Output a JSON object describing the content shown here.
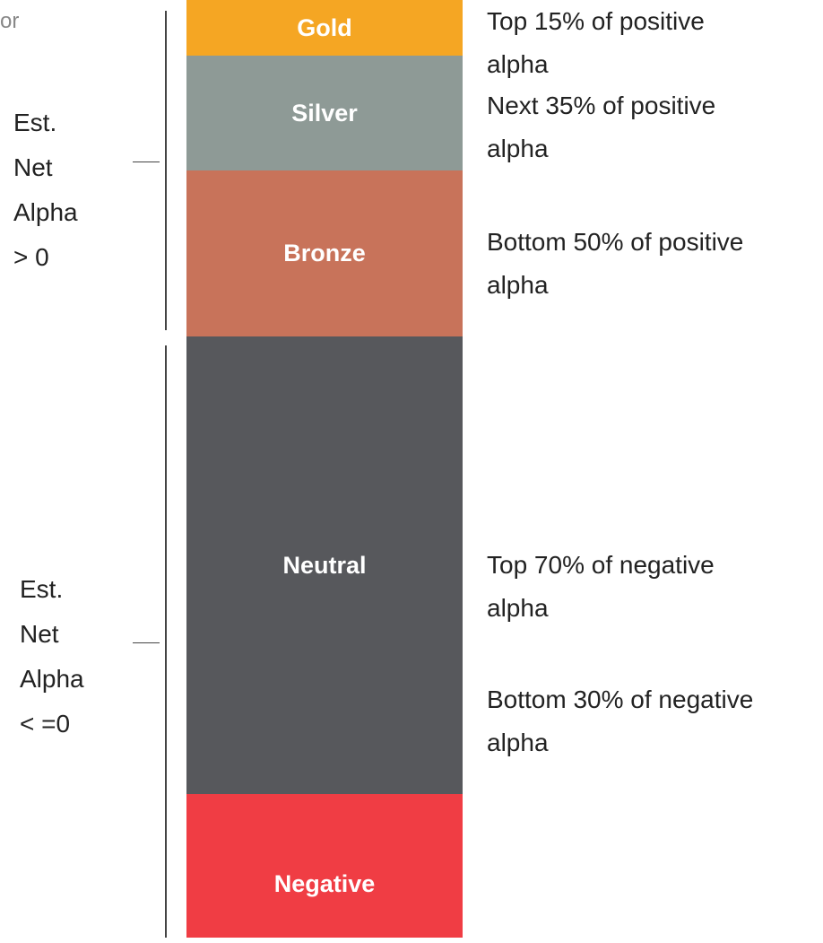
{
  "fragment": "or",
  "tiers": [
    {
      "label": "Gold",
      "color": "#f5a623",
      "description": [
        "Top 15% of positive",
        "alpha"
      ]
    },
    {
      "label": "Silver",
      "color": "#8e9a96",
      "description": [
        "Next 35% of positive",
        "alpha"
      ]
    },
    {
      "label": "Bronze",
      "color": "#c8735a",
      "description": [
        "Bottom 50% of positive",
        "alpha"
      ]
    },
    {
      "label": "Neutral",
      "color": "#57585c",
      "description": [
        "Top 70% of negative",
        "alpha"
      ]
    },
    {
      "label": "Negative",
      "color": "#f03d44",
      "description": [
        "Bottom 30% of negative",
        "alpha"
      ]
    }
  ],
  "groups": [
    {
      "lines": [
        "Est.",
        "Net",
        "Alpha",
        "> 0"
      ]
    },
    {
      "lines": [
        "Est.",
        "Net",
        "Alpha",
        "< =0"
      ]
    }
  ]
}
